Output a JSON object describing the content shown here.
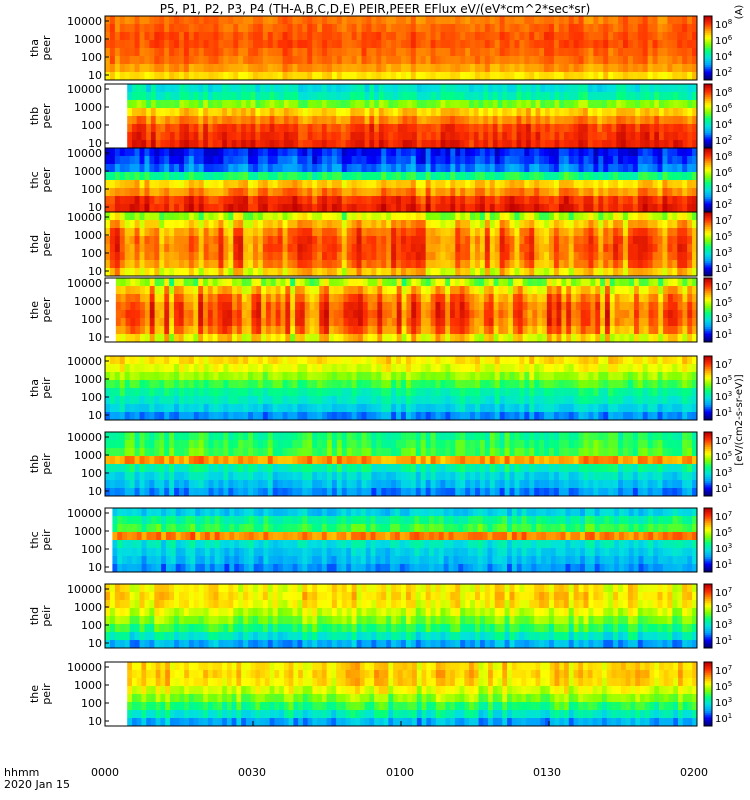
{
  "title": "P5, P1, P2, P3, P4 (TH-A,B,C,D,E) PEIR,PEER EFlux eV/(eV*cm^2*sec*sr)",
  "footer": {
    "label": "hhmm",
    "date": "2020 Jan 15"
  },
  "colorbar_unit": "[eV/(cm2-s-sr-eV)]",
  "colorbar_title": "(A)",
  "chart_data": {
    "type": "heatmap",
    "x_axis": {
      "ticks": [
        "0000",
        "0030",
        "0100",
        "0130",
        "0200"
      ]
    },
    "y_ticks": [
      "10000",
      "1000",
      "100",
      "10"
    ],
    "colorbar_ticks_even": [
      "10^8",
      "10^6",
      "10^4",
      "10^2"
    ],
    "colorbar_ticks_odd": [
      "10^7",
      "10^5",
      "10^3",
      "10^1"
    ],
    "colormap": [
      "#000080",
      "#0000ff",
      "#00a0ff",
      "#00e0e0",
      "#00ff80",
      "#80ff00",
      "#ffff00",
      "#ffa000",
      "#ff3000",
      "#c00000"
    ],
    "panels": [
      {
        "label": [
          "tha",
          "peer"
        ],
        "data_start_min": 0,
        "profile": [
          0.82,
          0.84,
          0.86,
          0.86,
          0.84,
          0.82,
          0.78,
          0.7
        ],
        "variability": 0.03
      },
      {
        "label": [
          "thb",
          "peer"
        ],
        "data_start_min": 4.5,
        "profile": [
          0.35,
          0.4,
          0.55,
          0.72,
          0.8,
          0.88,
          0.9,
          0.92
        ],
        "variability": 0.05
      },
      {
        "label": [
          "thc",
          "peer"
        ],
        "data_start_min": 0,
        "profile": [
          0.12,
          0.15,
          0.2,
          0.45,
          0.72,
          0.8,
          0.9,
          0.93
        ],
        "variability": 0.06
      },
      {
        "label": [
          "thd",
          "peer"
        ],
        "data_start_min": 0,
        "profile": [
          0.6,
          0.72,
          0.8,
          0.84,
          0.84,
          0.83,
          0.8,
          0.7
        ],
        "variability": 0.12
      },
      {
        "label": [
          "the",
          "peer"
        ],
        "data_start_min": 2.2,
        "profile": [
          0.58,
          0.72,
          0.8,
          0.84,
          0.85,
          0.84,
          0.8,
          0.68
        ],
        "variability": 0.12
      },
      {
        "label": [
          "tha",
          "peir"
        ],
        "data_start_min": 0,
        "profile": [
          0.7,
          0.65,
          0.58,
          0.5,
          0.42,
          0.38,
          0.32,
          0.22
        ],
        "variability": 0.05
      },
      {
        "label": [
          "thb",
          "peir"
        ],
        "data_start_min": 0,
        "profile": [
          0.45,
          0.48,
          0.5,
          0.78,
          0.4,
          0.33,
          0.28,
          0.22
        ],
        "variability": 0.06
      },
      {
        "label": [
          "thc",
          "peir"
        ],
        "data_start_min": 1.5,
        "profile": [
          0.3,
          0.42,
          0.48,
          0.8,
          0.35,
          0.3,
          0.27,
          0.22
        ],
        "variability": 0.06
      },
      {
        "label": [
          "thd",
          "peir"
        ],
        "data_start_min": 0,
        "profile": [
          0.68,
          0.7,
          0.68,
          0.62,
          0.55,
          0.47,
          0.37,
          0.25
        ],
        "variability": 0.07
      },
      {
        "label": [
          "the",
          "peir"
        ],
        "data_start_min": 4.5,
        "profile": [
          0.7,
          0.72,
          0.7,
          0.64,
          0.56,
          0.47,
          0.37,
          0.25
        ],
        "variability": 0.07
      }
    ],
    "colorbar_rows": [
      {
        "ticks": "even"
      },
      {
        "ticks": "even"
      },
      {
        "ticks": "even"
      },
      {
        "ticks": "odd"
      },
      {
        "ticks": "odd"
      },
      {
        "ticks": "odd"
      },
      {
        "ticks": "odd"
      },
      {
        "ticks": "odd"
      },
      {
        "ticks": "odd"
      },
      {
        "ticks": "odd"
      }
    ]
  }
}
